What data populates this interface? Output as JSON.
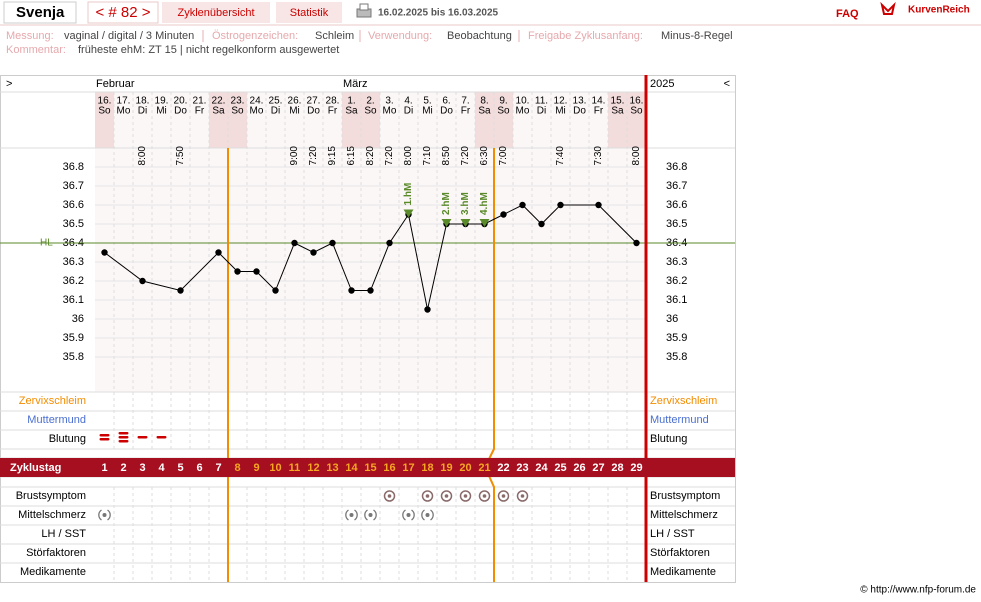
{
  "header": {
    "name": "Svenja",
    "cycle": "< # 82 >",
    "tabs": [
      "Zyklenübersicht",
      "Statistik"
    ],
    "range": "16.02.2025 bis 16.03.2025",
    "faq": "FAQ",
    "brand": "KurvenReich"
  },
  "info": [
    {
      "label": "Messung:",
      "value": "vaginal / digital / 3 Minuten"
    },
    {
      "label": "Östrogenzeichen:",
      "value": "Schleim"
    },
    {
      "label": "Verwendung:",
      "value": "Beobachtung"
    },
    {
      "label": "Freigabe Zyklusanfang:",
      "value": "Minus-8-Regel"
    },
    {
      "label": "Kommentar:",
      "value": "früheste ehM: ZT 15 | nicht regelkonform ausgewertet"
    }
  ],
  "nav": {
    "prev": ">",
    "next": "<",
    "year": "2025",
    "months": [
      {
        "label": "Februar",
        "day": 1
      },
      {
        "label": "März",
        "day": 14
      }
    ]
  },
  "days": [
    {
      "date": "16.",
      "weekday": "So",
      "time": null,
      "weekend": true
    },
    {
      "date": "17.",
      "weekday": "Mo",
      "time": null,
      "weekend": false
    },
    {
      "date": "18.",
      "weekday": "Di",
      "time": "8:00",
      "weekend": false
    },
    {
      "date": "19.",
      "weekday": "Mi",
      "time": null,
      "weekend": false
    },
    {
      "date": "20.",
      "weekday": "Do",
      "time": "7:50",
      "weekend": false
    },
    {
      "date": "21.",
      "weekday": "Fr",
      "time": null,
      "weekend": false
    },
    {
      "date": "22.",
      "weekday": "Sa",
      "time": null,
      "weekend": true
    },
    {
      "date": "23.",
      "weekday": "So",
      "time": null,
      "weekend": true
    },
    {
      "date": "24.",
      "weekday": "Mo",
      "time": null,
      "weekend": false
    },
    {
      "date": "25.",
      "weekday": "Di",
      "time": null,
      "weekend": false
    },
    {
      "date": "26.",
      "weekday": "Mi",
      "time": "9:00",
      "weekend": false
    },
    {
      "date": "27.",
      "weekday": "Do",
      "time": "7:20",
      "weekend": false
    },
    {
      "date": "28.",
      "weekday": "Fr",
      "time": "9:15",
      "weekend": false
    },
    {
      "date": "1.",
      "weekday": "Sa",
      "time": "6:15",
      "weekend": true
    },
    {
      "date": "2.",
      "weekday": "So",
      "time": "8:20",
      "weekend": true
    },
    {
      "date": "3.",
      "weekday": "Mo",
      "time": "7:20",
      "weekend": false
    },
    {
      "date": "4.",
      "weekday": "Di",
      "time": "8:00",
      "weekend": false
    },
    {
      "date": "5.",
      "weekday": "Mi",
      "time": "7:10",
      "weekend": false
    },
    {
      "date": "6.",
      "weekday": "Do",
      "time": "8:50",
      "weekend": false
    },
    {
      "date": "7.",
      "weekday": "Fr",
      "time": "7:20",
      "weekend": false
    },
    {
      "date": "8.",
      "weekday": "Sa",
      "time": "6:30",
      "weekend": true
    },
    {
      "date": "9.",
      "weekday": "So",
      "time": "7:00",
      "weekend": true
    },
    {
      "date": "10.",
      "weekday": "Mo",
      "time": null,
      "weekend": false
    },
    {
      "date": "11.",
      "weekday": "Di",
      "time": null,
      "weekend": false
    },
    {
      "date": "12.",
      "weekday": "Mi",
      "time": "7:40",
      "weekend": false
    },
    {
      "date": "13.",
      "weekday": "Do",
      "time": null,
      "weekend": false
    },
    {
      "date": "14.",
      "weekday": "Fr",
      "time": "7:30",
      "weekend": false
    },
    {
      "date": "15.",
      "weekday": "Sa",
      "time": null,
      "weekend": true
    },
    {
      "date": "16.",
      "weekday": "So",
      "time": "8:00",
      "weekend": true
    }
  ],
  "chart_data": {
    "type": "line",
    "x": [
      1,
      3,
      5,
      7,
      8,
      9,
      10,
      11,
      12,
      13,
      14,
      15,
      16,
      17,
      18,
      19,
      20,
      21,
      22,
      23,
      24,
      25,
      27,
      29
    ],
    "values": [
      36.35,
      36.2,
      36.15,
      36.35,
      36.25,
      36.25,
      36.15,
      36.4,
      36.35,
      36.4,
      36.15,
      36.15,
      36.4,
      36.55,
      36.05,
      36.5,
      36.5,
      36.5,
      36.55,
      36.6,
      36.5,
      36.6,
      36.6,
      36.4
    ],
    "color": "#000000",
    "ylim": [
      35.6,
      36.9
    ],
    "yticks": [
      36.8,
      36.7,
      36.6,
      36.5,
      36.4,
      36.3,
      36.2,
      36.1,
      36,
      35.9,
      35.8
    ],
    "coverline": {
      "label": "HL",
      "value": 36.4,
      "color": "#5a8a2a"
    },
    "markers": [
      {
        "label": "1.hM",
        "day": 17
      },
      {
        "label": "2.hM",
        "day": 19
      },
      {
        "label": "3.hM",
        "day": 20
      },
      {
        "label": "4.hM",
        "day": 21
      }
    ]
  },
  "upper_rows": [
    {
      "label": "Zervixschleim",
      "color": "#f28c00"
    },
    {
      "label": "Muttermund",
      "color": "#4a6fd1"
    },
    {
      "label": "Blutung",
      "color": "#000000",
      "days": [
        1,
        2,
        3,
        4
      ],
      "strength": [
        2,
        3,
        1,
        1
      ]
    }
  ],
  "cycle": {
    "label": "Zyklustag",
    "days": [
      1,
      2,
      3,
      4,
      5,
      6,
      7,
      8,
      9,
      10,
      11,
      12,
      13,
      14,
      15,
      16,
      17,
      18,
      19,
      20,
      21,
      22,
      23,
      24,
      25,
      26,
      27,
      28,
      29
    ],
    "highlight": [
      8,
      21
    ]
  },
  "lower_rows": [
    {
      "label": "Brustsymptom",
      "days": [
        16,
        18,
        19,
        20,
        21,
        22,
        23
      ]
    },
    {
      "label": "Mittelschmerz",
      "days": [
        1,
        14,
        15,
        17,
        18
      ]
    },
    {
      "label": "LH / SST",
      "days": []
    },
    {
      "label": "Störfaktoren",
      "days": []
    },
    {
      "label": "Medikamente",
      "days": []
    }
  ],
  "footer": "© http://www.nfp-forum.de"
}
